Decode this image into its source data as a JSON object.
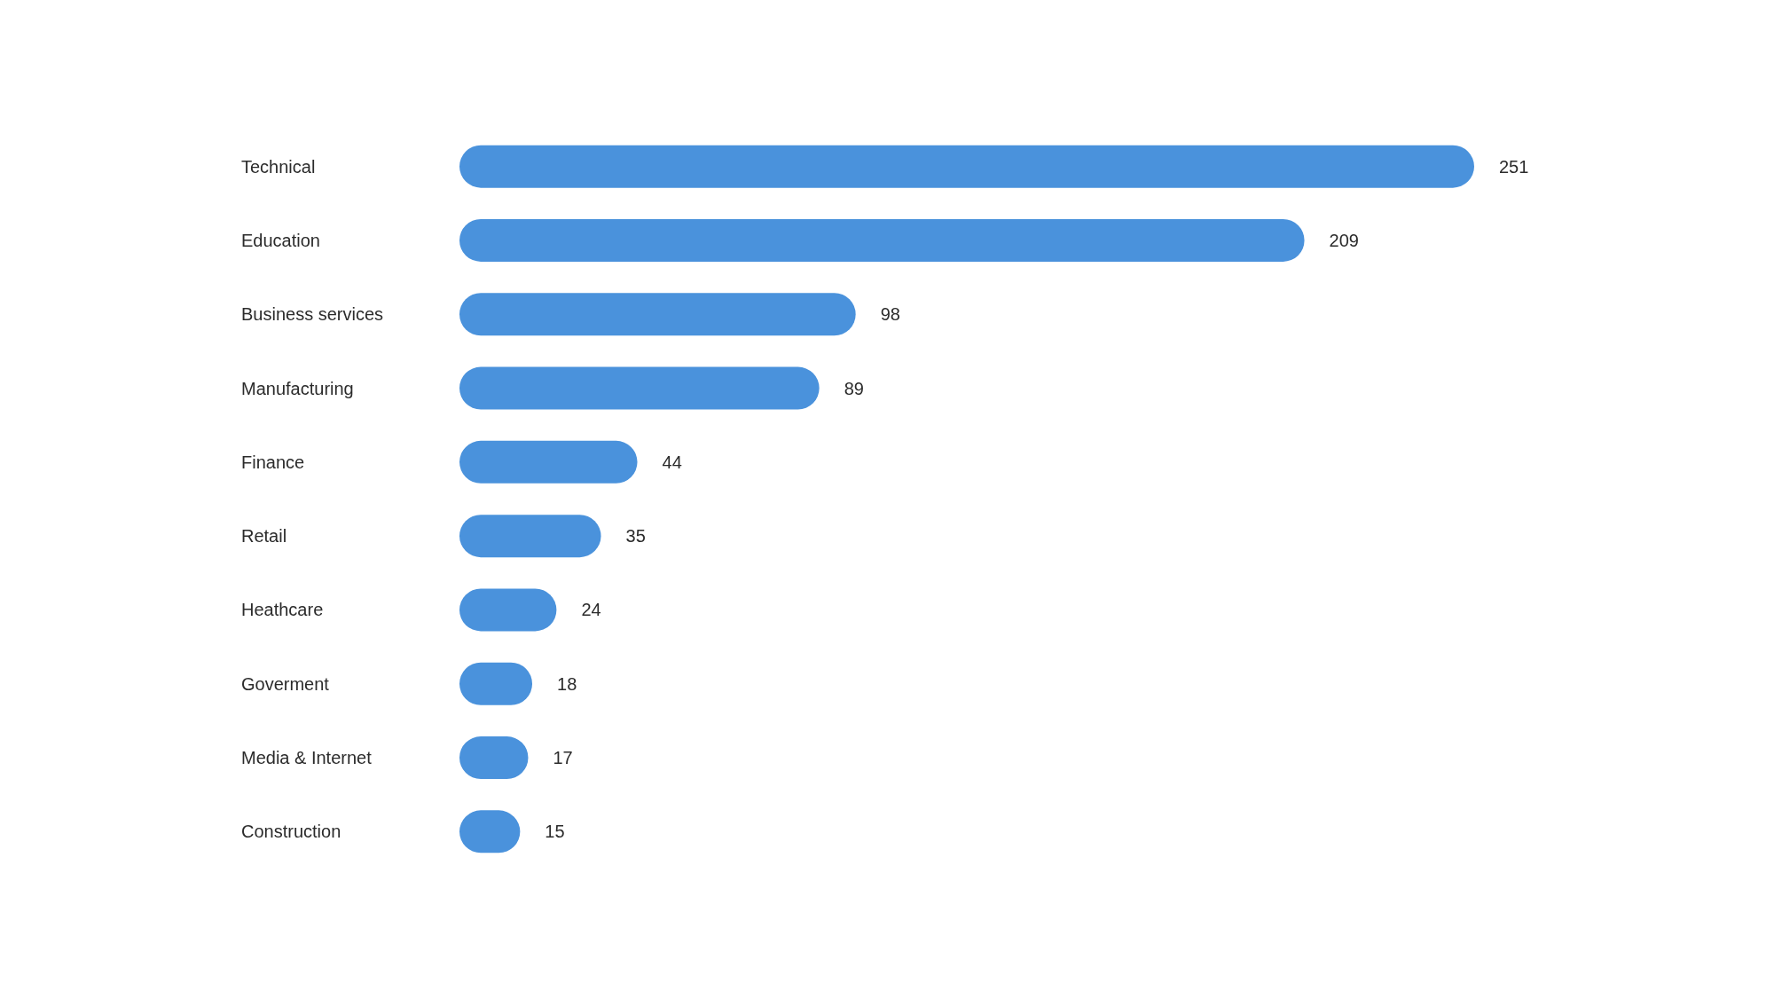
{
  "chart_data": {
    "type": "bar",
    "orientation": "horizontal",
    "categories": [
      "Technical",
      "Education",
      "Business services",
      "Manufacturing",
      "Finance",
      "Retail",
      "Heathcare",
      "Goverment",
      "Media & Internet",
      "Construction"
    ],
    "values": [
      251,
      209,
      98,
      89,
      44,
      35,
      24,
      18,
      17,
      15
    ],
    "color": "#4a92dc",
    "data_labels": true
  }
}
